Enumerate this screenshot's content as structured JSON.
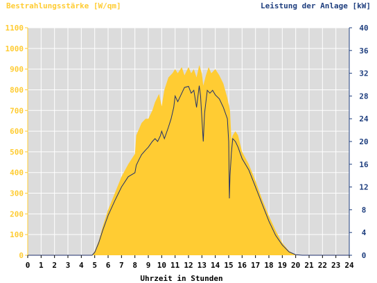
{
  "chart_data": {
    "type": "area",
    "left_axis_label": "Bestrahlungsstärke [W/qm]",
    "right_axis_label": "Leistung der Anlage [kW]",
    "xlabel": "Uhrzeit in Stunden",
    "xlim": [
      0,
      24
    ],
    "ylim_left": [
      0,
      1100
    ],
    "ylim_right": [
      0,
      40
    ],
    "x_ticks": [
      "0",
      "1",
      "2",
      "3",
      "4",
      "5",
      "6",
      "7",
      "8",
      "9",
      "10",
      "11",
      "12",
      "13",
      "14",
      "15",
      "16",
      "17",
      "18",
      "19",
      "20",
      "21",
      "22",
      "23",
      "24"
    ],
    "y_left_ticks": [
      "0",
      "100",
      "200",
      "300",
      "400",
      "500",
      "600",
      "700",
      "800",
      "900",
      "1000",
      "1100"
    ],
    "y_right_ticks": [
      "0",
      "4",
      "8",
      "12",
      "16",
      "20",
      "24",
      "28",
      "32",
      "36",
      "40"
    ],
    "grid": true,
    "colors": {
      "irradiance_fill": "#ffcc33",
      "power_line": "#1f2f6b",
      "plot_background": "#dcdcdc",
      "grid": "#ffffff",
      "left_axis": "#ffcc33",
      "right_axis": "#1f3f7f"
    },
    "series": [
      {
        "axis": "left",
        "style": "filled-area",
        "x": [
          0,
          4.8,
          5.0,
          5.3,
          5.6,
          6.0,
          6.5,
          7.0,
          7.5,
          8.0,
          8.1,
          8.3,
          8.5,
          8.8,
          9.0,
          9.3,
          9.5,
          9.8,
          10.0,
          10.2,
          10.5,
          10.8,
          11.0,
          11.2,
          11.5,
          11.7,
          12.0,
          12.2,
          12.4,
          12.6,
          12.8,
          13.0,
          13.1,
          13.3,
          13.5,
          13.7,
          14.0,
          14.3,
          14.6,
          14.9,
          15.1,
          15.2,
          15.3,
          15.5,
          15.7,
          16.0,
          16.5,
          17.0,
          17.5,
          18.0,
          18.5,
          19.0,
          19.5,
          20.0,
          20.3,
          24
        ],
        "values": [
          0,
          0,
          20,
          70,
          140,
          220,
          300,
          380,
          440,
          490,
          580,
          610,
          640,
          660,
          660,
          700,
          740,
          780,
          720,
          800,
          860,
          880,
          900,
          880,
          910,
          870,
          910,
          880,
          900,
          860,
          920,
          880,
          820,
          870,
          910,
          880,
          900,
          870,
          830,
          760,
          700,
          560,
          580,
          600,
          580,
          500,
          440,
          360,
          270,
          190,
          120,
          60,
          20,
          3,
          0,
          0
        ]
      },
      {
        "axis": "right",
        "style": "line",
        "x": [
          0,
          4.8,
          5.0,
          5.3,
          5.6,
          6.0,
          6.5,
          7.0,
          7.5,
          8.0,
          8.1,
          8.3,
          8.5,
          8.8,
          9.0,
          9.3,
          9.5,
          9.7,
          9.9,
          10.0,
          10.2,
          10.5,
          10.7,
          10.9,
          11.0,
          11.2,
          11.5,
          11.7,
          12.0,
          12.2,
          12.4,
          12.6,
          12.8,
          12.9,
          13.1,
          13.2,
          13.4,
          13.6,
          13.8,
          14.0,
          14.3,
          14.6,
          14.9,
          15.0,
          15.05,
          15.1,
          15.2,
          15.3,
          15.5,
          15.7,
          16.0,
          16.5,
          17.0,
          17.5,
          18.0,
          18.5,
          19.0,
          19.5,
          20.0,
          20.5,
          24
        ],
        "values": [
          0,
          0,
          0.5,
          2.2,
          4.4,
          7.0,
          9.6,
          12.0,
          13.8,
          14.5,
          15.8,
          16.8,
          17.7,
          18.5,
          19.0,
          20.0,
          20.5,
          20.0,
          21.0,
          21.8,
          20.5,
          22.5,
          24.0,
          26.0,
          28.0,
          27.0,
          28.5,
          29.5,
          29.7,
          28.5,
          29.0,
          26.0,
          29.8,
          28.0,
          20.0,
          25.0,
          29.0,
          28.5,
          29.0,
          28.2,
          27.5,
          26.0,
          24.0,
          20.0,
          10.0,
          14.0,
          18.0,
          20.5,
          20.0,
          19.0,
          17.0,
          15.0,
          12.0,
          9.0,
          6.0,
          3.5,
          1.8,
          0.6,
          0.1,
          0,
          0
        ]
      }
    ]
  }
}
